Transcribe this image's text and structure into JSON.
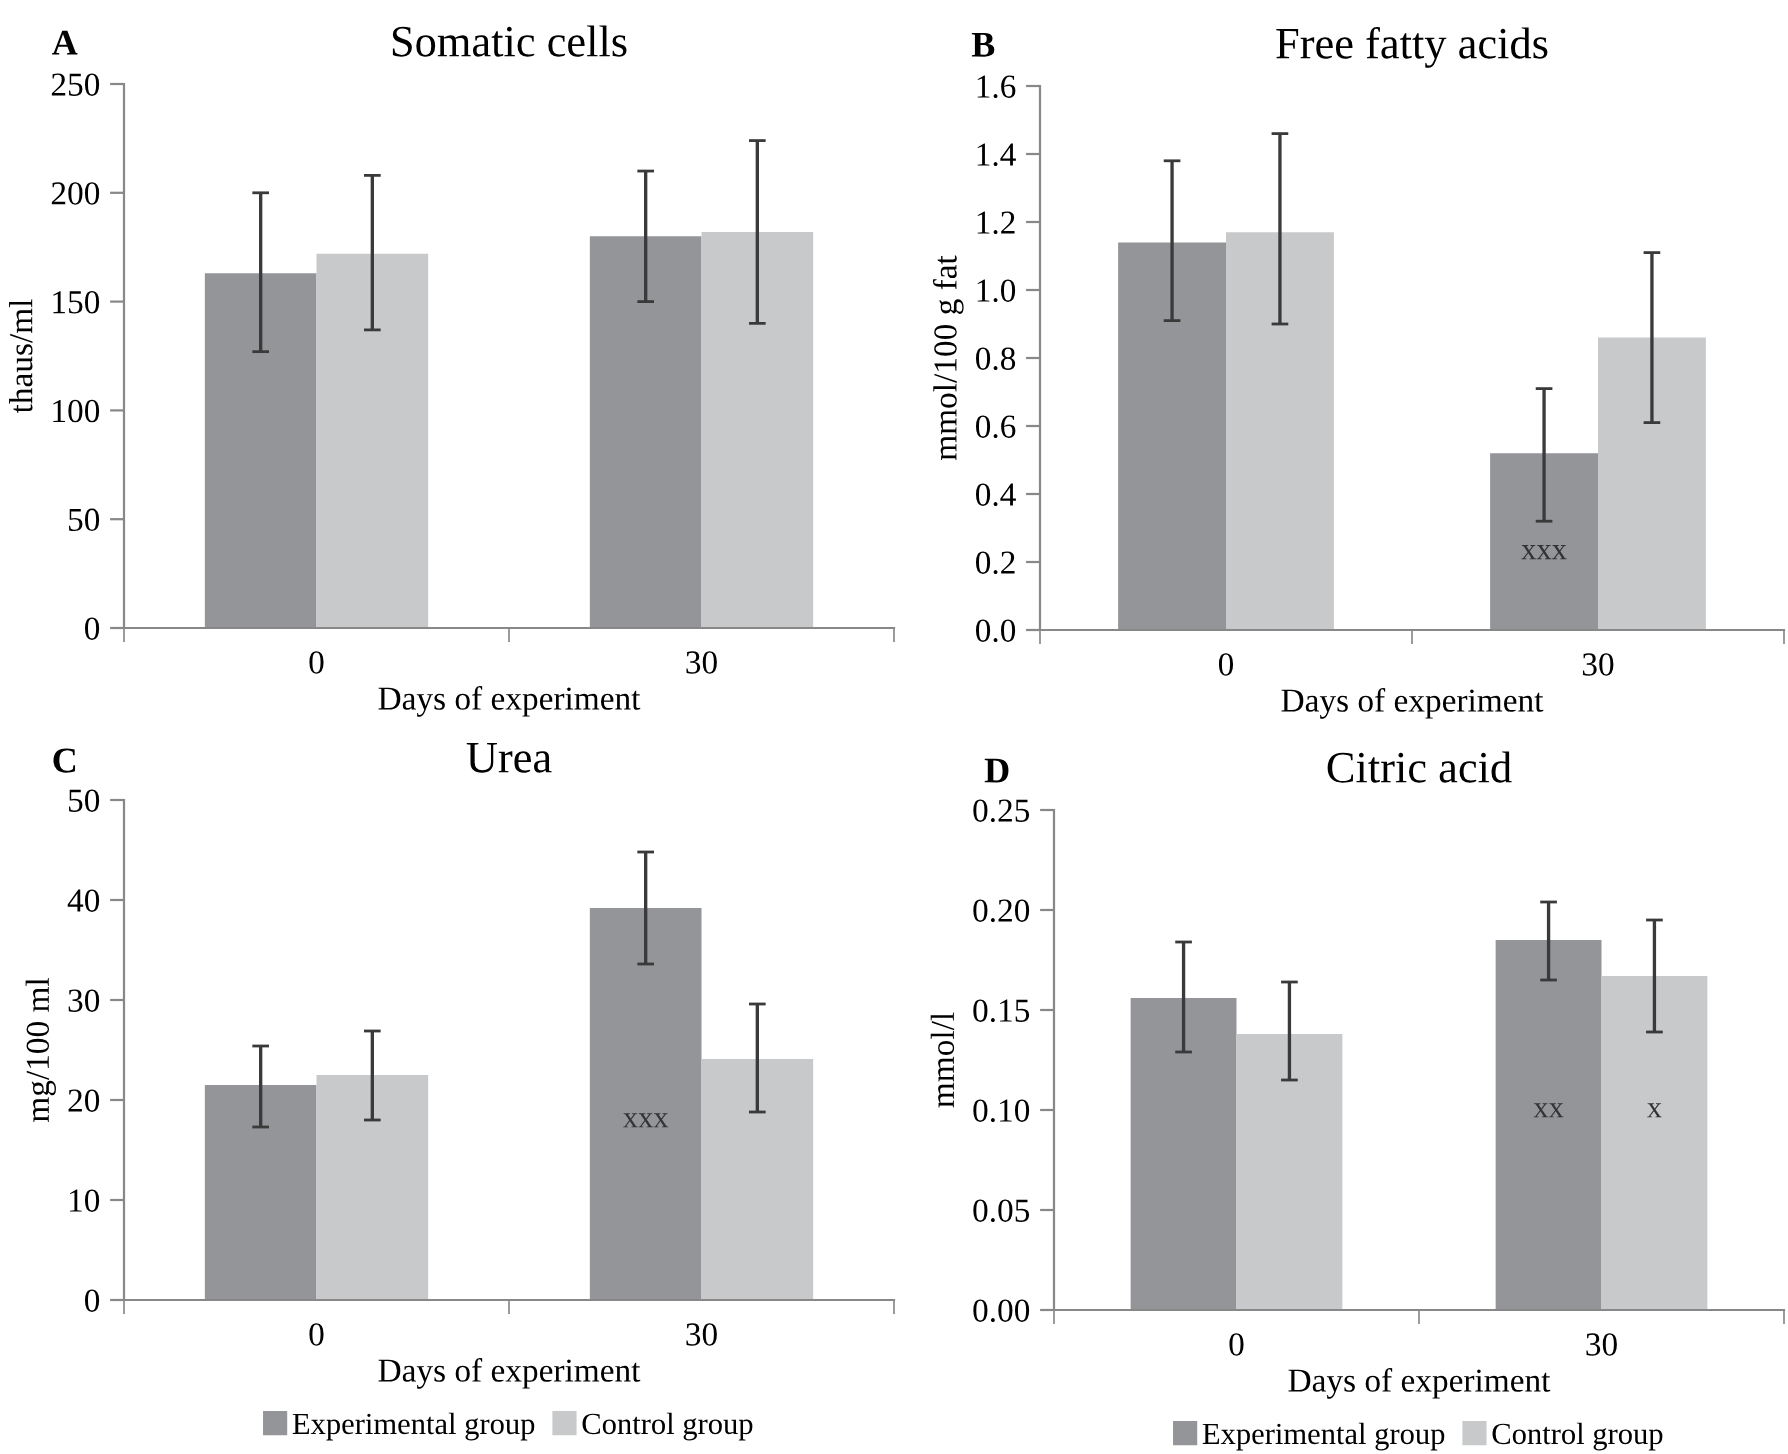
{
  "chart_data": [
    {
      "type": "bar",
      "title": "Somatic cells",
      "xlabel": "Days of experiment",
      "ylabel": "thaus/ml",
      "categories": [
        "0",
        "30"
      ],
      "series": [
        {
          "color": "#939598",
          "values": [
            163,
            180
          ],
          "errors": [
            [
              127,
              200
            ],
            [
              150,
              210
            ]
          ]
        },
        {
          "color": "#c8c9cb",
          "values": [
            172,
            182
          ],
          "errors": [
            [
              137,
              208
            ],
            [
              140,
              224
            ]
          ]
        }
      ],
      "ylim": [
        0,
        250
      ],
      "yticks": [
        0,
        50,
        100,
        150,
        200,
        250
      ],
      "grid": false,
      "legend": false,
      "annotations": [
        "A"
      ]
    },
    {
      "type": "bar",
      "title": "Free fatty acids",
      "xlabel": "Days of experiment",
      "ylabel": "mmol/100 g fat",
      "categories": [
        "0",
        "30"
      ],
      "series": [
        {
          "color": "#939598",
          "values": [
            1.14,
            0.52
          ],
          "errors": [
            [
              0.91,
              1.38
            ],
            [
              0.32,
              0.71
            ]
          ]
        },
        {
          "color": "#c8c9cb",
          "values": [
            1.17,
            0.86
          ],
          "errors": [
            [
              0.9,
              1.46
            ],
            [
              0.61,
              1.11
            ]
          ]
        }
      ],
      "ylim": [
        0,
        1.6
      ],
      "yticks": [
        {
          "value": 0,
          "label": "0.0"
        },
        {
          "value": 0.2,
          "label": "0.2"
        },
        {
          "value": 0.4,
          "label": "0.4"
        },
        {
          "value": 0.6,
          "label": "0.6"
        },
        {
          "value": 0.8,
          "label": "0.8"
        },
        {
          "value": 1.0,
          "label": "1.0"
        },
        {
          "value": 1.2,
          "label": "1.2"
        },
        {
          "value": 1.4,
          "label": "1.4"
        },
        {
          "value": 1.6,
          "label": "1.6"
        }
      ],
      "grid": false,
      "legend": false,
      "annotations": [
        "B",
        {
          "text": "xxx",
          "x": "30",
          "y": 0.23
        }
      ]
    },
    {
      "type": "bar",
      "title": "Urea",
      "xlabel": "Days of experiment",
      "ylabel": "mg/100 ml",
      "categories": [
        "0",
        "30"
      ],
      "series": [
        {
          "name": "Experimental group",
          "color": "#939598",
          "values": [
            21.5,
            39.2
          ],
          "errors": [
            [
              17.3,
              25.4
            ],
            [
              33.6,
              44.8
            ]
          ]
        },
        {
          "name": "Control group",
          "color": "#c8c9cb",
          "values": [
            22.5,
            24.1
          ],
          "errors": [
            [
              18.0,
              26.9
            ],
            [
              18.8,
              29.6
            ]
          ]
        }
      ],
      "ylim": [
        0,
        50
      ],
      "yticks": [
        0,
        10,
        20,
        30,
        40,
        50
      ],
      "grid": false,
      "legend": "bottom",
      "annotations": [
        "C",
        {
          "text": "xxx",
          "x": "30",
          "y": 18
        }
      ]
    },
    {
      "type": "bar",
      "title": "Citric acid",
      "xlabel": "Days of experiment",
      "ylabel": "mmol/l",
      "categories": [
        "0",
        "30"
      ],
      "series": [
        {
          "name": "Experimental group",
          "color": "#939598",
          "values": [
            0.156,
            0.185
          ],
          "errors": [
            [
              0.129,
              0.184
            ],
            [
              0.165,
              0.204
            ]
          ]
        },
        {
          "name": "Control group",
          "color": "#c8c9cb",
          "values": [
            0.138,
            0.167
          ],
          "errors": [
            [
              0.115,
              0.164
            ],
            [
              0.139,
              0.195
            ]
          ]
        }
      ],
      "ylim": [
        0,
        0.25
      ],
      "yticks": [
        {
          "value": 0,
          "label": "0.00"
        },
        {
          "value": 0.05,
          "label": "0.05"
        },
        {
          "value": 0.1,
          "label": "0.10"
        },
        {
          "value": 0.15,
          "label": "0.15"
        },
        {
          "value": 0.2,
          "label": "0.20"
        },
        {
          "value": 0.25,
          "label": "0.25"
        }
      ],
      "grid": false,
      "legend": "bottom",
      "annotations": [
        "D",
        {
          "text": "xx",
          "x": "30",
          "y": 0.1
        },
        {
          "text": "x",
          "x": "30",
          "y": 0.1
        }
      ]
    }
  ]
}
